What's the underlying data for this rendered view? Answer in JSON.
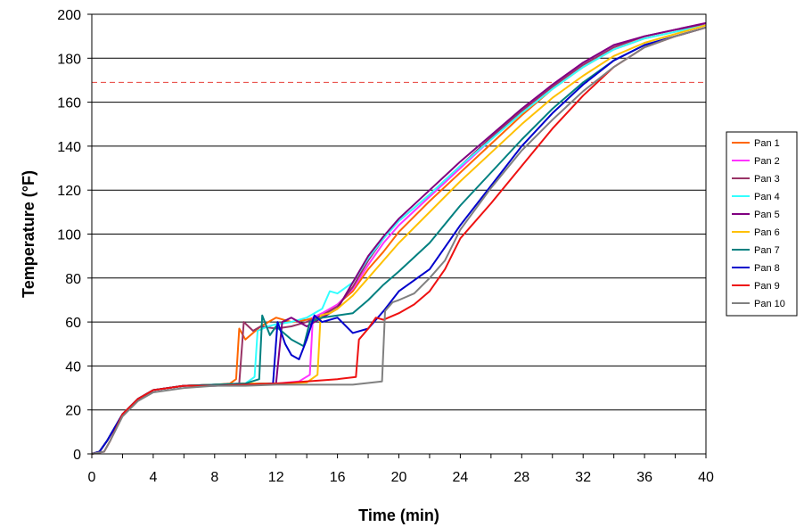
{
  "chart_data": {
    "type": "line",
    "title": "",
    "xlabel": "Time (min)",
    "ylabel": "Temperature (°F)",
    "xlim": [
      0,
      40
    ],
    "ylim": [
      0,
      200
    ],
    "x_ticks": [
      0,
      4,
      8,
      12,
      16,
      20,
      24,
      28,
      32,
      36,
      40
    ],
    "y_ticks": [
      0,
      20,
      40,
      60,
      80,
      100,
      120,
      140,
      160,
      180,
      200
    ],
    "grid": "horizontal",
    "legend_position": "right",
    "reference_line": {
      "y": 169,
      "color": "#e8403a",
      "style": "dashed"
    },
    "series": [
      {
        "name": "Pan 1",
        "color": "#ff6600",
        "points": [
          [
            0,
            0
          ],
          [
            0.5,
            1
          ],
          [
            1,
            6
          ],
          [
            2,
            18
          ],
          [
            3,
            25
          ],
          [
            4,
            29
          ],
          [
            6,
            31
          ],
          [
            8,
            31.5
          ],
          [
            9,
            32
          ],
          [
            9.4,
            34
          ],
          [
            9.6,
            57
          ],
          [
            10,
            52
          ],
          [
            11,
            58
          ],
          [
            12,
            62
          ],
          [
            13,
            60
          ],
          [
            14,
            61
          ],
          [
            15,
            63
          ],
          [
            16,
            68
          ],
          [
            17,
            74
          ],
          [
            18,
            84
          ],
          [
            19,
            92
          ],
          [
            20,
            101
          ],
          [
            22,
            115
          ],
          [
            24,
            128
          ],
          [
            26,
            141
          ],
          [
            28,
            154
          ],
          [
            30,
            166
          ],
          [
            32,
            176
          ],
          [
            34,
            184
          ],
          [
            36,
            189
          ],
          [
            38,
            192
          ],
          [
            40,
            195
          ]
        ]
      },
      {
        "name": "Pan 2",
        "color": "#ff33ff",
        "points": [
          [
            0,
            0
          ],
          [
            0.5,
            1
          ],
          [
            1,
            6
          ],
          [
            2,
            18
          ],
          [
            3,
            25
          ],
          [
            4,
            29
          ],
          [
            6,
            31
          ],
          [
            8,
            31.5
          ],
          [
            10,
            32
          ],
          [
            12,
            32
          ],
          [
            13.5,
            33
          ],
          [
            14.2,
            36
          ],
          [
            14.4,
            62
          ],
          [
            15,
            64
          ],
          [
            16,
            68
          ],
          [
            17,
            75
          ],
          [
            18,
            86
          ],
          [
            19,
            96
          ],
          [
            20,
            104
          ],
          [
            22,
            117
          ],
          [
            24,
            130
          ],
          [
            26,
            143
          ],
          [
            28,
            156
          ],
          [
            30,
            168
          ],
          [
            32,
            178
          ],
          [
            34,
            186
          ],
          [
            36,
            190
          ],
          [
            38,
            193
          ],
          [
            40,
            196
          ]
        ]
      },
      {
        "name": "Pan 3",
        "color": "#993366",
        "points": [
          [
            0,
            0
          ],
          [
            0.5,
            1
          ],
          [
            1,
            6
          ],
          [
            2,
            18
          ],
          [
            3,
            25
          ],
          [
            4,
            29
          ],
          [
            6,
            31
          ],
          [
            8,
            31.5
          ],
          [
            9.6,
            32
          ],
          [
            9.9,
            60
          ],
          [
            10.5,
            56
          ],
          [
            11,
            58
          ],
          [
            12,
            57
          ],
          [
            13,
            58
          ],
          [
            14,
            60
          ],
          [
            15,
            63
          ],
          [
            16,
            67
          ],
          [
            17,
            76
          ],
          [
            18,
            88
          ],
          [
            19,
            98
          ],
          [
            20,
            106
          ],
          [
            22,
            118
          ],
          [
            24,
            131
          ],
          [
            26,
            144
          ],
          [
            28,
            156
          ],
          [
            30,
            167
          ],
          [
            32,
            177
          ],
          [
            34,
            185
          ],
          [
            36,
            190
          ],
          [
            38,
            193
          ],
          [
            40,
            195
          ]
        ]
      },
      {
        "name": "Pan 4",
        "color": "#33ffff",
        "points": [
          [
            0,
            0
          ],
          [
            0.5,
            1
          ],
          [
            1,
            6
          ],
          [
            2,
            18
          ],
          [
            3,
            25
          ],
          [
            4,
            29
          ],
          [
            6,
            31
          ],
          [
            8,
            31.5
          ],
          [
            10,
            32
          ],
          [
            10.6,
            35
          ],
          [
            10.8,
            56
          ],
          [
            11.5,
            58
          ],
          [
            12,
            59
          ],
          [
            13,
            60
          ],
          [
            14,
            62
          ],
          [
            15,
            66
          ],
          [
            15.5,
            74
          ],
          [
            16,
            73
          ],
          [
            17,
            78
          ],
          [
            18,
            89
          ],
          [
            19,
            98
          ],
          [
            20,
            106
          ],
          [
            22,
            118
          ],
          [
            24,
            131
          ],
          [
            26,
            143
          ],
          [
            28,
            155
          ],
          [
            30,
            166
          ],
          [
            32,
            176
          ],
          [
            34,
            184
          ],
          [
            36,
            189
          ],
          [
            38,
            192
          ],
          [
            40,
            195
          ]
        ]
      },
      {
        "name": "Pan 5",
        "color": "#800080",
        "points": [
          [
            0,
            0
          ],
          [
            0.5,
            1
          ],
          [
            1,
            6
          ],
          [
            2,
            18
          ],
          [
            3,
            25
          ],
          [
            4,
            29
          ],
          [
            6,
            31
          ],
          [
            8,
            31.5
          ],
          [
            10,
            32
          ],
          [
            12,
            32
          ],
          [
            12.4,
            60
          ],
          [
            13,
            62
          ],
          [
            14,
            58
          ],
          [
            15,
            62
          ],
          [
            16,
            66
          ],
          [
            17,
            78
          ],
          [
            18,
            90
          ],
          [
            19,
            99
          ],
          [
            20,
            107
          ],
          [
            22,
            120
          ],
          [
            24,
            133
          ],
          [
            26,
            145
          ],
          [
            28,
            157
          ],
          [
            30,
            168
          ],
          [
            32,
            178
          ],
          [
            34,
            186
          ],
          [
            36,
            190
          ],
          [
            38,
            193
          ],
          [
            40,
            196
          ]
        ]
      },
      {
        "name": "Pan 6",
        "color": "#ffc000",
        "points": [
          [
            0,
            0
          ],
          [
            0.5,
            1
          ],
          [
            1,
            6
          ],
          [
            2,
            18
          ],
          [
            3,
            25
          ],
          [
            4,
            29
          ],
          [
            6,
            31
          ],
          [
            8,
            31.5
          ],
          [
            10,
            32
          ],
          [
            12,
            32
          ],
          [
            14,
            32.5
          ],
          [
            14.7,
            36
          ],
          [
            14.9,
            63
          ],
          [
            15.5,
            64
          ],
          [
            16,
            66
          ],
          [
            17,
            72
          ],
          [
            18,
            80
          ],
          [
            19,
            88
          ],
          [
            20,
            96
          ],
          [
            22,
            110
          ],
          [
            24,
            124
          ],
          [
            26,
            137
          ],
          [
            28,
            150
          ],
          [
            30,
            162
          ],
          [
            32,
            172
          ],
          [
            34,
            181
          ],
          [
            36,
            187
          ],
          [
            38,
            191
          ],
          [
            40,
            195
          ]
        ]
      },
      {
        "name": "Pan 7",
        "color": "#008080",
        "points": [
          [
            0,
            0
          ],
          [
            0.5,
            1
          ],
          [
            1,
            6
          ],
          [
            2,
            18
          ],
          [
            3,
            25
          ],
          [
            4,
            29
          ],
          [
            6,
            31
          ],
          [
            8,
            31.5
          ],
          [
            10,
            32
          ],
          [
            10.9,
            34
          ],
          [
            11.1,
            63
          ],
          [
            11.6,
            54
          ],
          [
            12,
            58
          ],
          [
            13,
            52
          ],
          [
            13.8,
            49
          ],
          [
            14.2,
            60
          ],
          [
            15,
            62
          ],
          [
            16,
            63
          ],
          [
            17,
            64
          ],
          [
            18,
            70
          ],
          [
            19,
            77
          ],
          [
            20,
            83
          ],
          [
            22,
            96
          ],
          [
            24,
            113
          ],
          [
            26,
            128
          ],
          [
            28,
            143
          ],
          [
            30,
            157
          ],
          [
            32,
            169
          ],
          [
            34,
            179
          ],
          [
            36,
            186
          ],
          [
            38,
            190
          ],
          [
            40,
            194
          ]
        ]
      },
      {
        "name": "Pan 8",
        "color": "#0000cc",
        "points": [
          [
            0,
            0
          ],
          [
            0.5,
            1
          ],
          [
            1,
            6
          ],
          [
            2,
            18
          ],
          [
            3,
            25
          ],
          [
            4,
            29
          ],
          [
            6,
            31
          ],
          [
            8,
            31
          ],
          [
            10,
            31.5
          ],
          [
            11.8,
            32
          ],
          [
            12.1,
            60
          ],
          [
            12.6,
            50
          ],
          [
            13,
            45
          ],
          [
            13.5,
            43
          ],
          [
            14,
            52
          ],
          [
            14.5,
            63
          ],
          [
            15,
            60
          ],
          [
            16,
            62
          ],
          [
            17,
            55
          ],
          [
            18,
            57
          ],
          [
            19,
            65
          ],
          [
            20,
            74
          ],
          [
            22,
            84
          ],
          [
            24,
            104
          ],
          [
            26,
            122
          ],
          [
            28,
            140
          ],
          [
            30,
            155
          ],
          [
            32,
            168
          ],
          [
            34,
            179
          ],
          [
            36,
            186
          ],
          [
            38,
            190
          ],
          [
            40,
            194
          ]
        ]
      },
      {
        "name": "Pan 9",
        "color": "#ee1111",
        "points": [
          [
            0,
            0
          ],
          [
            0.8,
            1
          ],
          [
            1.2,
            6
          ],
          [
            2,
            18
          ],
          [
            3,
            25
          ],
          [
            4,
            29
          ],
          [
            6,
            31
          ],
          [
            8,
            31
          ],
          [
            10,
            31.5
          ],
          [
            12,
            32
          ],
          [
            14,
            33
          ],
          [
            16,
            34
          ],
          [
            17.2,
            35
          ],
          [
            17.4,
            52
          ],
          [
            18,
            57
          ],
          [
            18.5,
            62
          ],
          [
            19,
            61
          ],
          [
            20,
            64
          ],
          [
            21,
            68
          ],
          [
            22,
            74
          ],
          [
            23,
            84
          ],
          [
            24,
            98
          ],
          [
            26,
            114
          ],
          [
            28,
            131
          ],
          [
            30,
            148
          ],
          [
            32,
            163
          ],
          [
            34,
            176
          ],
          [
            36,
            185
          ],
          [
            38,
            190
          ],
          [
            40,
            194
          ]
        ]
      },
      {
        "name": "Pan 10",
        "color": "#808080",
        "points": [
          [
            0,
            0
          ],
          [
            0.8,
            1
          ],
          [
            1.2,
            6
          ],
          [
            2,
            17
          ],
          [
            3,
            24
          ],
          [
            4,
            28
          ],
          [
            6,
            30
          ],
          [
            8,
            31
          ],
          [
            10,
            31
          ],
          [
            12,
            31.5
          ],
          [
            14,
            31.5
          ],
          [
            16,
            31.5
          ],
          [
            17,
            31.5
          ],
          [
            18.9,
            33
          ],
          [
            19.1,
            65
          ],
          [
            19.6,
            69
          ],
          [
            20,
            70
          ],
          [
            21,
            73
          ],
          [
            22,
            80
          ],
          [
            23,
            88
          ],
          [
            24,
            102
          ],
          [
            26,
            121
          ],
          [
            28,
            138
          ],
          [
            30,
            152
          ],
          [
            32,
            165
          ],
          [
            34,
            176
          ],
          [
            36,
            185
          ],
          [
            38,
            190
          ],
          [
            40,
            194
          ]
        ]
      }
    ]
  }
}
